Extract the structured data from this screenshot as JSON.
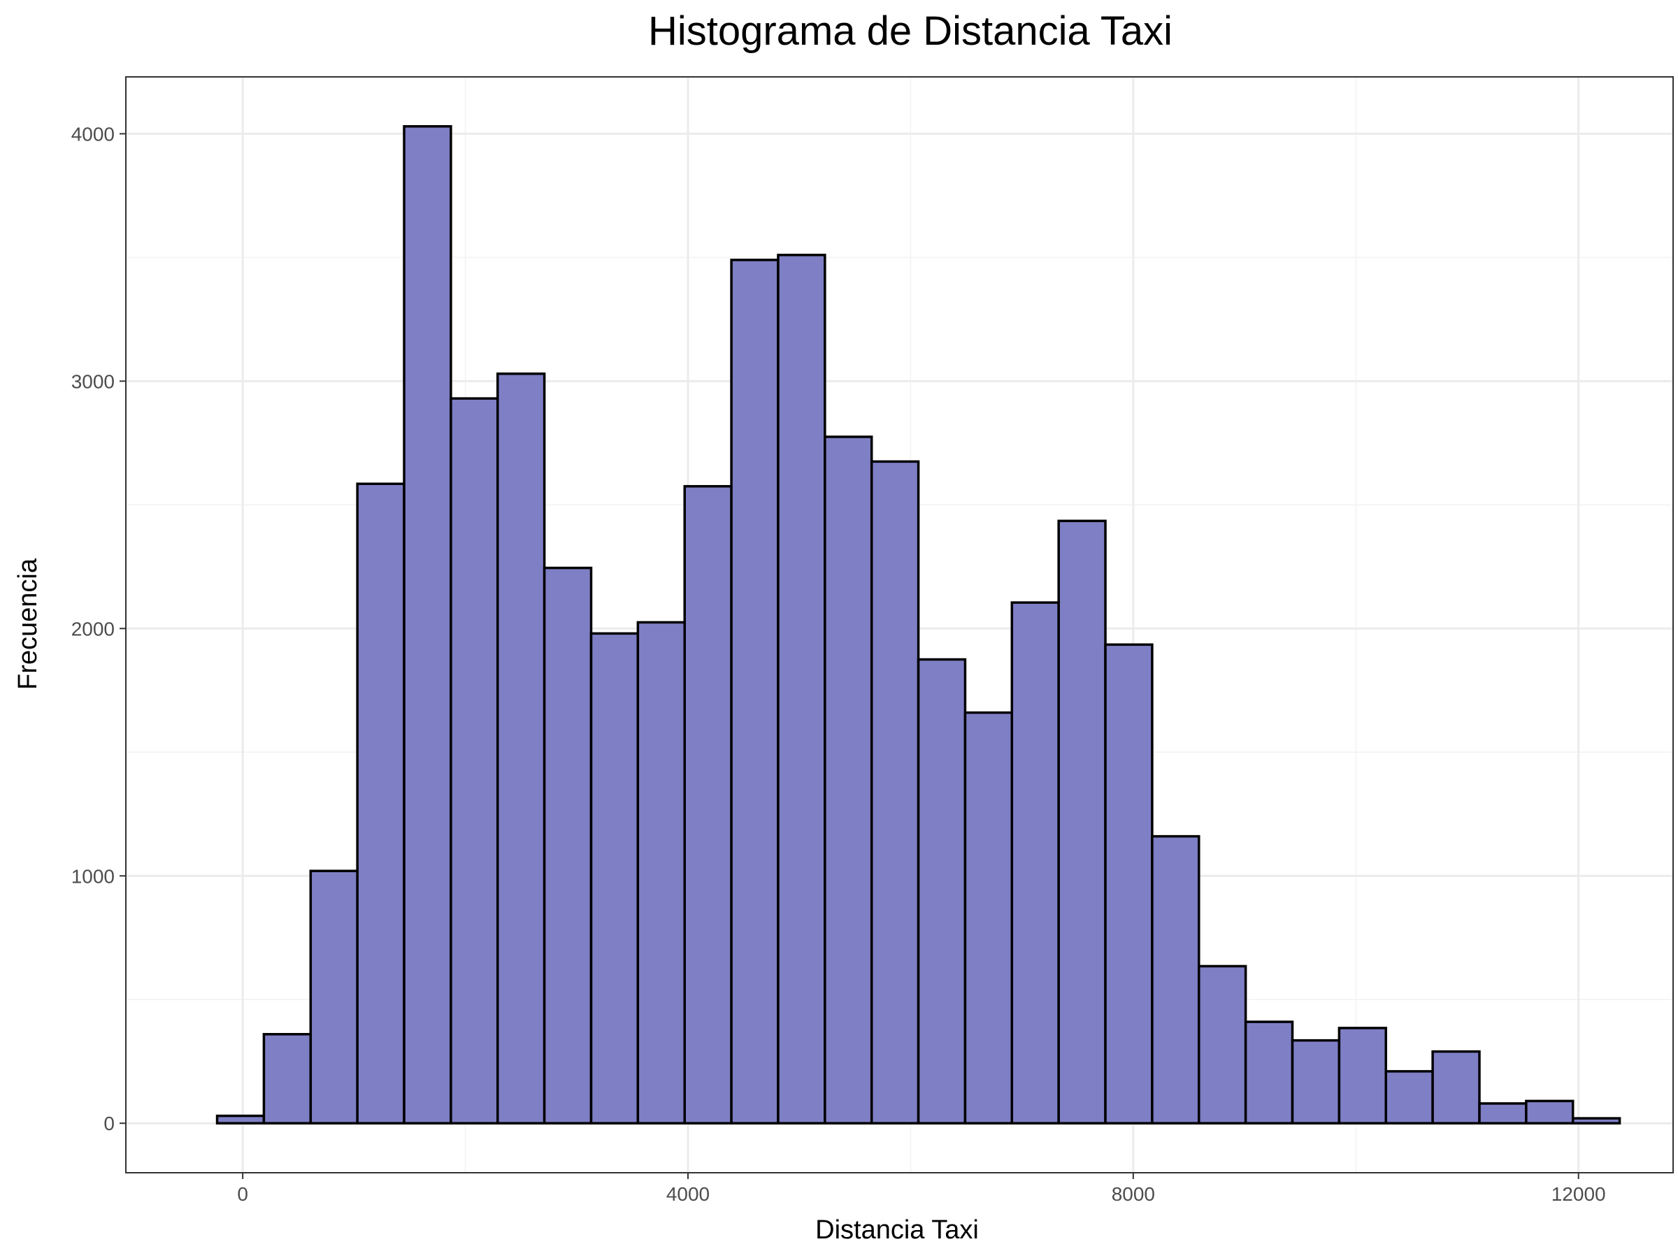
{
  "chart_data": {
    "type": "bar",
    "title": "Histograma de Distancia Taxi",
    "xlabel": "Distancia Taxi",
    "ylabel": "Frecuencia",
    "bar_color": "#7f7fc6",
    "bar_outline": "#000000",
    "xlim": [
      -1050,
      12850
    ],
    "ylim": [
      -200,
      4230
    ],
    "x_ticks": [
      0,
      4000,
      8000,
      12000
    ],
    "x_tick_labels": [
      "0",
      "4000",
      "8000",
      "12000"
    ],
    "y_ticks": [
      0,
      1000,
      2000,
      3000,
      4000
    ],
    "y_tick_labels": [
      "0",
      "1000",
      "2000",
      "3000",
      "4000"
    ],
    "bin_width": 420,
    "bin_start": -230,
    "values": [
      30,
      360,
      1020,
      2585,
      4030,
      2930,
      3030,
      2245,
      1980,
      2025,
      2575,
      3490,
      3510,
      2775,
      2675,
      1875,
      1660,
      2105,
      2435,
      1935,
      1160,
      635,
      410,
      335,
      385,
      210,
      290,
      80,
      90,
      20
    ],
    "grid": true,
    "legend": "none"
  }
}
